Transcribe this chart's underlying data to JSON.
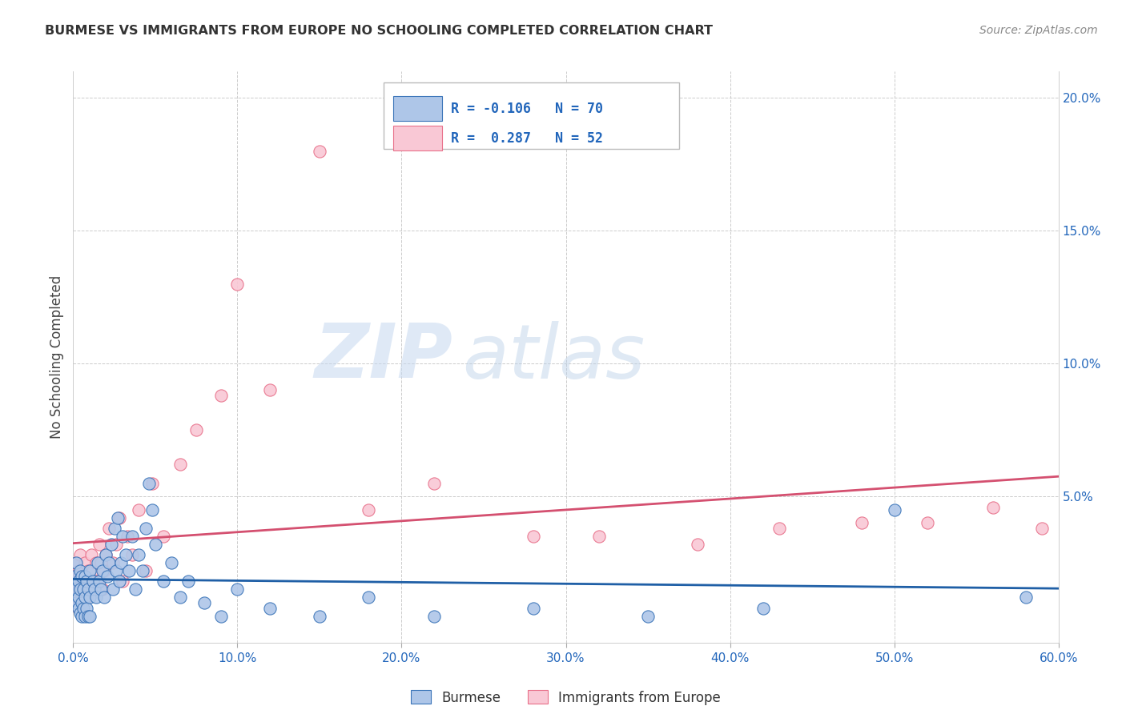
{
  "title": "BURMESE VS IMMIGRANTS FROM EUROPE NO SCHOOLING COMPLETED CORRELATION CHART",
  "source": "Source: ZipAtlas.com",
  "ylabel": "No Schooling Completed",
  "xlim": [
    0.0,
    0.6
  ],
  "ylim": [
    -0.005,
    0.21
  ],
  "xticks": [
    0.0,
    0.1,
    0.2,
    0.3,
    0.4,
    0.5,
    0.6
  ],
  "xticklabels": [
    "0.0%",
    "10.0%",
    "20.0%",
    "30.0%",
    "40.0%",
    "50.0%",
    "60.0%"
  ],
  "yticks_right": [
    0.05,
    0.1,
    0.15,
    0.2
  ],
  "ytick_right_labels": [
    "5.0%",
    "10.0%",
    "15.0%",
    "20.0%"
  ],
  "series1_name": "Burmese",
  "series1_color": "#aec6e8",
  "series1_edge_color": "#3a74b8",
  "series1_line_color": "#1f5fa6",
  "series1_R": -0.106,
  "series1_N": 70,
  "series2_name": "Immigrants from Europe",
  "series2_color": "#f9c8d5",
  "series2_edge_color": "#e8708a",
  "series2_line_color": "#d45070",
  "series2_R": 0.287,
  "series2_N": 52,
  "watermark_zip": "ZIP",
  "watermark_atlas": "atlas",
  "background_color": "#ffffff",
  "grid_color": "#cccccc",
  "burmese_x": [
    0.001,
    0.001,
    0.002,
    0.002,
    0.003,
    0.003,
    0.003,
    0.004,
    0.004,
    0.004,
    0.005,
    0.005,
    0.005,
    0.006,
    0.006,
    0.007,
    0.007,
    0.007,
    0.008,
    0.008,
    0.009,
    0.009,
    0.01,
    0.01,
    0.01,
    0.012,
    0.013,
    0.014,
    0.015,
    0.016,
    0.017,
    0.018,
    0.019,
    0.02,
    0.021,
    0.022,
    0.023,
    0.024,
    0.025,
    0.026,
    0.027,
    0.028,
    0.029,
    0.03,
    0.032,
    0.034,
    0.036,
    0.038,
    0.04,
    0.042,
    0.044,
    0.046,
    0.048,
    0.05,
    0.055,
    0.06,
    0.065,
    0.07,
    0.08,
    0.09,
    0.1,
    0.12,
    0.15,
    0.18,
    0.22,
    0.28,
    0.35,
    0.42,
    0.5,
    0.58
  ],
  "burmese_y": [
    0.015,
    0.02,
    0.01,
    0.025,
    0.008,
    0.012,
    0.018,
    0.006,
    0.015,
    0.022,
    0.005,
    0.01,
    0.02,
    0.008,
    0.015,
    0.005,
    0.012,
    0.02,
    0.008,
    0.018,
    0.005,
    0.015,
    0.005,
    0.012,
    0.022,
    0.018,
    0.015,
    0.012,
    0.025,
    0.018,
    0.015,
    0.022,
    0.012,
    0.028,
    0.02,
    0.025,
    0.032,
    0.015,
    0.038,
    0.022,
    0.042,
    0.018,
    0.025,
    0.035,
    0.028,
    0.022,
    0.035,
    0.015,
    0.028,
    0.022,
    0.038,
    0.055,
    0.045,
    0.032,
    0.018,
    0.025,
    0.012,
    0.018,
    0.01,
    0.005,
    0.015,
    0.008,
    0.005,
    0.012,
    0.005,
    0.008,
    0.005,
    0.008,
    0.045,
    0.012
  ],
  "europe_x": [
    0.001,
    0.002,
    0.002,
    0.003,
    0.003,
    0.004,
    0.004,
    0.005,
    0.005,
    0.006,
    0.007,
    0.007,
    0.008,
    0.009,
    0.01,
    0.011,
    0.012,
    0.013,
    0.014,
    0.015,
    0.016,
    0.017,
    0.018,
    0.019,
    0.02,
    0.022,
    0.024,
    0.026,
    0.028,
    0.03,
    0.033,
    0.036,
    0.04,
    0.044,
    0.048,
    0.055,
    0.065,
    0.075,
    0.09,
    0.1,
    0.12,
    0.15,
    0.18,
    0.22,
    0.28,
    0.32,
    0.38,
    0.43,
    0.48,
    0.52,
    0.56,
    0.59
  ],
  "europe_y": [
    0.018,
    0.012,
    0.025,
    0.008,
    0.022,
    0.015,
    0.028,
    0.01,
    0.02,
    0.015,
    0.025,
    0.018,
    0.012,
    0.022,
    0.015,
    0.028,
    0.022,
    0.018,
    0.025,
    0.018,
    0.032,
    0.025,
    0.015,
    0.022,
    0.028,
    0.038,
    0.025,
    0.032,
    0.042,
    0.018,
    0.035,
    0.028,
    0.045,
    0.022,
    0.055,
    0.035,
    0.062,
    0.075,
    0.088,
    0.13,
    0.09,
    0.18,
    0.045,
    0.055,
    0.035,
    0.035,
    0.032,
    0.038,
    0.04,
    0.04,
    0.046,
    0.038
  ]
}
